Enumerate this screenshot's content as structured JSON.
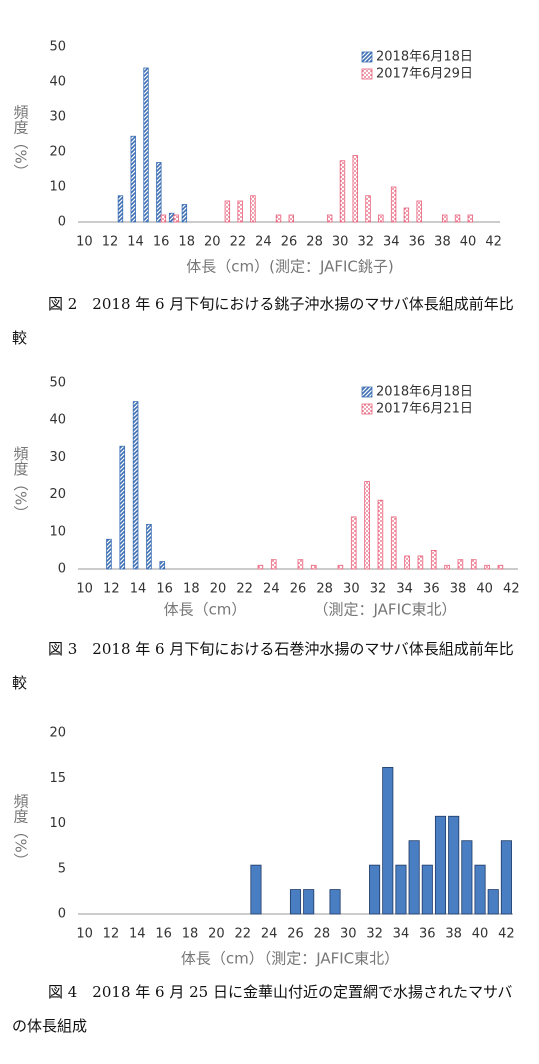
{
  "chart_data": [
    {
      "type": "bar",
      "ylim": [
        0,
        50
      ],
      "yticks": [
        0,
        10,
        20,
        30,
        40,
        50
      ],
      "categories": [
        "10",
        null,
        "12",
        null,
        "14",
        null,
        "16",
        null,
        "18",
        null,
        "20",
        null,
        "22",
        null,
        "24",
        null,
        "26",
        null,
        "28",
        null,
        "30",
        null,
        "32",
        null,
        "34",
        null,
        "36",
        null,
        "38",
        null,
        "40",
        null,
        "42"
      ],
      "y_label": "頻度（%）",
      "x_label": "体長（cm）(測定：JAFIC銚子)",
      "series": [
        {
          "name": "2018年6月18日",
          "color": "#3d6fb5",
          "pattern": "hatch",
          "values": [
            0,
            0,
            0,
            7.5,
            24.5,
            44,
            17,
            2.5,
            5,
            0,
            0,
            0,
            0,
            0,
            0,
            0,
            0,
            0,
            0,
            0,
            0,
            0,
            0,
            0,
            0,
            0,
            0,
            0,
            0,
            0,
            0,
            0,
            0
          ]
        },
        {
          "name": "2017年6月29日",
          "color": "#e8607a",
          "pattern": "dots",
          "values": [
            0,
            0,
            0,
            0,
            0,
            0,
            2,
            2,
            0,
            0,
            0,
            6,
            6,
            7.5,
            0,
            2,
            2,
            0,
            0,
            2,
            17.5,
            19,
            7.5,
            2,
            10,
            4,
            6,
            0,
            2,
            2,
            2,
            0,
            0
          ]
        }
      ]
    },
    {
      "type": "bar",
      "ylim": [
        0,
        50
      ],
      "yticks": [
        0,
        10,
        20,
        30,
        40,
        50
      ],
      "categories": [
        "10",
        null,
        "12",
        null,
        "14",
        null,
        "16",
        null,
        "18",
        null,
        "20",
        null,
        "22",
        null,
        "24",
        null,
        "26",
        null,
        "28",
        null,
        "30",
        null,
        "32",
        null,
        "34",
        null,
        "36",
        null,
        "38",
        null,
        "40",
        null,
        "42"
      ],
      "y_label": "頻度（%）",
      "x_label": [
        "体長（cm）",
        "（測定：JAFIC東北）"
      ],
      "series": [
        {
          "name": "2018年6月18日",
          "color": "#3d6fb5",
          "pattern": "hatch",
          "values": [
            0,
            0,
            8,
            33,
            45,
            12,
            2,
            0,
            0,
            0,
            0,
            0,
            0,
            0,
            0,
            0,
            0,
            0,
            0,
            0,
            0,
            0,
            0,
            0,
            0,
            0,
            0,
            0,
            0,
            0,
            0,
            0,
            0
          ]
        },
        {
          "name": "2017年6月21日",
          "color": "#e8607a",
          "pattern": "dots",
          "values": [
            0,
            0,
            0,
            0,
            0,
            0,
            0,
            0,
            0,
            0,
            0,
            0,
            0,
            1,
            2.5,
            0,
            2.5,
            1,
            0,
            1,
            14,
            23.5,
            18.5,
            14,
            3.5,
            3.5,
            5,
            1,
            2.5,
            2.5,
            1,
            1,
            0
          ]
        }
      ]
    },
    {
      "type": "bar",
      "ylim": [
        0,
        20
      ],
      "yticks": [
        0,
        5,
        10,
        15,
        20
      ],
      "categories": [
        "10",
        null,
        "12",
        null,
        "14",
        null,
        "16",
        null,
        "18",
        null,
        "20",
        null,
        "22",
        null,
        "24",
        null,
        "26",
        null,
        "28",
        null,
        "30",
        null,
        "32",
        null,
        "34",
        null,
        "36",
        null,
        "38",
        null,
        "40",
        null,
        "42"
      ],
      "y_label": "頻度（%）",
      "x_label": "体長（cm）（測定：JAFIC東北）",
      "series": [
        {
          "color": "#4a7ec2",
          "pattern": "solid",
          "values": [
            0,
            0,
            0,
            0,
            0,
            0,
            0,
            0,
            0,
            0,
            0,
            0,
            0,
            5.4,
            0,
            0,
            2.7,
            2.7,
            0,
            2.7,
            0,
            0,
            5.4,
            16.2,
            5.4,
            8.1,
            5.4,
            10.8,
            10.8,
            8.1,
            5.4,
            2.7,
            8.1
          ]
        }
      ]
    }
  ],
  "captions": [
    "図 2　2018 年 6 月下旬における銚子沖水揚のマサバ体長組成前年比較",
    "図 3　2018 年 6 月下旬における石巻沖水揚のマサバ体長組成前年比較",
    "図 4　2018 年 6 月 25 日に金華山付近の定置網で水揚されたマサバの体長組成"
  ]
}
